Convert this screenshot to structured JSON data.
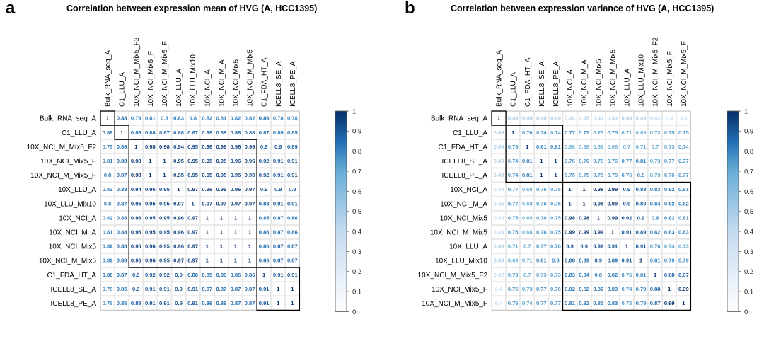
{
  "chart_data": [
    {
      "type": "heatmap",
      "panel": "a",
      "title": "Correlation between expression mean of HVG (A, HCC1395)",
      "labels": [
        "Bulk_RNA_seq_A",
        "C1_LLU_A",
        "10X_NCI_M_Mix5_F2",
        "10X_NCI_Mix5_F",
        "10X_NCI_M_Mix5_F",
        "10X_LLU_A",
        "10X_LLU_Mix10",
        "10X_NCI_A",
        "10X_NCI_M_A",
        "10X_NCI_Mix5",
        "10X_NCI_M_Mix5",
        "C1_FDA_HT_A",
        "ICELL8_SE_A",
        "ICELL8_PE_A"
      ],
      "matrix": [
        [
          "1",
          "0.88",
          "0.79",
          "0.81",
          "0.8",
          "0.83",
          "0.8",
          "0.82",
          "0.81",
          "0.82",
          "0.82",
          "0.86",
          "0.78",
          "0.78"
        ],
        [
          "0.88",
          "1",
          "0.86",
          "0.88",
          "0.87",
          "0.88",
          "0.87",
          "0.88",
          "0.88",
          "0.88",
          "0.88",
          "0.87",
          "0.85",
          "0.85"
        ],
        [
          "0.79",
          "0.86",
          "1",
          "0.98",
          "0.98",
          "0.94",
          "0.95",
          "0.96",
          "0.96",
          "0.96",
          "0.96",
          "0.9",
          "0.9",
          "0.89"
        ],
        [
          "0.81",
          "0.88",
          "0.98",
          "1",
          "1",
          "0.95",
          "0.95",
          "0.95",
          "0.95",
          "0.96",
          "0.96",
          "0.92",
          "0.91",
          "0.91"
        ],
        [
          "0.8",
          "0.87",
          "0.98",
          "1",
          "1",
          "0.95",
          "0.95",
          "0.95",
          "0.95",
          "0.95",
          "0.95",
          "0.92",
          "0.91",
          "0.91"
        ],
        [
          "0.83",
          "0.88",
          "0.94",
          "0.95",
          "0.95",
          "1",
          "0.97",
          "0.96",
          "0.96",
          "0.96",
          "0.97",
          "0.9",
          "0.9",
          "0.9"
        ],
        [
          "0.8",
          "0.87",
          "0.95",
          "0.95",
          "0.95",
          "0.97",
          "1",
          "0.97",
          "0.97",
          "0.97",
          "0.97",
          "0.88",
          "0.91",
          "0.91"
        ],
        [
          "0.82",
          "0.88",
          "0.96",
          "0.95",
          "0.95",
          "0.96",
          "0.97",
          "1",
          "1",
          "1",
          "1",
          "0.85",
          "0.87",
          "0.86"
        ],
        [
          "0.81",
          "0.88",
          "0.96",
          "0.95",
          "0.95",
          "0.96",
          "0.97",
          "1",
          "1",
          "1",
          "1",
          "0.86",
          "0.87",
          "0.86"
        ],
        [
          "0.82",
          "0.88",
          "0.96",
          "0.96",
          "0.95",
          "0.96",
          "0.97",
          "1",
          "1",
          "1",
          "1",
          "0.86",
          "0.87",
          "0.87"
        ],
        [
          "0.82",
          "0.88",
          "0.96",
          "0.96",
          "0.95",
          "0.97",
          "0.97",
          "1",
          "1",
          "1",
          "1",
          "0.86",
          "0.87",
          "0.87"
        ],
        [
          "0.86",
          "0.87",
          "0.9",
          "0.92",
          "0.92",
          "0.9",
          "0.88",
          "0.85",
          "0.86",
          "0.86",
          "0.86",
          "1",
          "0.91",
          "0.91"
        ],
        [
          "0.78",
          "0.85",
          "0.9",
          "0.91",
          "0.91",
          "0.9",
          "0.91",
          "0.87",
          "0.87",
          "0.87",
          "0.87",
          "0.91",
          "1",
          "1"
        ],
        [
          "0.78",
          "0.85",
          "0.89",
          "0.91",
          "0.91",
          "0.9",
          "0.91",
          "0.86",
          "0.86",
          "0.87",
          "0.87",
          "0.91",
          "1",
          "1"
        ]
      ],
      "clusters": [
        [
          0,
          0
        ],
        [
          1,
          1
        ],
        [
          2,
          10
        ],
        [
          11,
          13
        ]
      ],
      "colorbar": {
        "range": [
          0,
          1
        ],
        "ticks": [
          "1",
          "0.9",
          "0.8",
          "0.7",
          "0.6",
          "0.5",
          "0.4",
          "0.3",
          "0.2",
          "0.1",
          "0"
        ]
      }
    },
    {
      "type": "heatmap",
      "panel": "b",
      "title": "Correlation between expression variance of HVG (A, HCC1395)",
      "labels": [
        "Bulk_RNA_seq_A",
        "C1_LLU_A",
        "C1_FDA_HT_A",
        "ICELL8_SE_A",
        "ICELL8_PE_A",
        "10X_NCI_A",
        "10X_NCI_M_A",
        "10X_NCI_Mix5",
        "10X_NCI_M_Mix5",
        "10X_LLU_A",
        "10X_LLU_Mix10",
        "10X_NCI_M_Mix5_F2",
        "10X_NCI_Mix5_F",
        "10X_NCI_M_Mix5_F"
      ],
      "matrix": [
        [
          "1",
          "0.49",
          "0.49",
          "0.49",
          "0.49",
          "0.44",
          "0.45",
          "0.44",
          "0.43",
          "0.48",
          "0.48",
          "0.42",
          "0.4",
          "0.4"
        ],
        [
          "0.49",
          "1",
          "0.76",
          "0.74",
          "0.74",
          "0.77",
          "0.77",
          "0.75",
          "0.75",
          "0.71",
          "0.69",
          "0.73",
          "0.75",
          "0.75"
        ],
        [
          "0.49",
          "0.76",
          "1",
          "0.81",
          "0.81",
          "0.68",
          "0.68",
          "0.69",
          "0.68",
          "0.7",
          "0.71",
          "0.7",
          "0.73",
          "0.74"
        ],
        [
          "0.49",
          "0.74",
          "0.81",
          "1",
          "1",
          "0.76",
          "0.76",
          "0.76",
          "0.76",
          "0.77",
          "0.81",
          "0.73",
          "0.77",
          "0.77"
        ],
        [
          "0.49",
          "0.74",
          "0.81",
          "1",
          "1",
          "0.75",
          "0.75",
          "0.75",
          "0.75",
          "0.76",
          "0.8",
          "0.73",
          "0.76",
          "0.77"
        ],
        [
          "0.44",
          "0.77",
          "0.68",
          "0.76",
          "0.75",
          "1",
          "1",
          "0.98",
          "0.99",
          "0.9",
          "0.88",
          "0.83",
          "0.82",
          "0.81"
        ],
        [
          "0.45",
          "0.77",
          "0.68",
          "0.76",
          "0.75",
          "1",
          "1",
          "0.98",
          "0.99",
          "0.9",
          "0.89",
          "0.84",
          "0.82",
          "0.82"
        ],
        [
          "0.44",
          "0.75",
          "0.69",
          "0.76",
          "0.75",
          "0.98",
          "0.98",
          "1",
          "0.99",
          "0.92",
          "0.9",
          "0.8",
          "0.82",
          "0.81"
        ],
        [
          "0.43",
          "0.75",
          "0.68",
          "0.76",
          "0.75",
          "0.99",
          "0.99",
          "0.99",
          "1",
          "0.91",
          "0.89",
          "0.82",
          "0.83",
          "0.83"
        ],
        [
          "0.48",
          "0.71",
          "0.7",
          "0.77",
          "0.76",
          "0.9",
          "0.9",
          "0.92",
          "0.91",
          "1",
          "0.91",
          "0.76",
          "0.74",
          "0.73"
        ],
        [
          "0.48",
          "0.69",
          "0.71",
          "0.81",
          "0.8",
          "0.88",
          "0.89",
          "0.9",
          "0.89",
          "0.91",
          "1",
          "0.81",
          "0.79",
          "0.79"
        ],
        [
          "0.42",
          "0.73",
          "0.7",
          "0.73",
          "0.73",
          "0.83",
          "0.84",
          "0.8",
          "0.82",
          "0.76",
          "0.81",
          "1",
          "0.88",
          "0.87"
        ],
        [
          "0.4",
          "0.75",
          "0.73",
          "0.77",
          "0.76",
          "0.82",
          "0.82",
          "0.82",
          "0.83",
          "0.74",
          "0.79",
          "0.88",
          "1",
          "0.99"
        ],
        [
          "0.4",
          "0.75",
          "0.74",
          "0.77",
          "0.77",
          "0.81",
          "0.82",
          "0.81",
          "0.83",
          "0.73",
          "0.79",
          "0.87",
          "0.99",
          "1"
        ]
      ],
      "clusters": [
        [
          0,
          0
        ],
        [
          1,
          4
        ],
        [
          5,
          13
        ]
      ],
      "colorbar": {
        "range": [
          0,
          1
        ],
        "ticks": [
          "1",
          "0.9",
          "0.8",
          "0.7",
          "0.6",
          "0.5",
          "0.4",
          "0.3",
          "0.2",
          "0.1",
          "0"
        ]
      }
    }
  ]
}
